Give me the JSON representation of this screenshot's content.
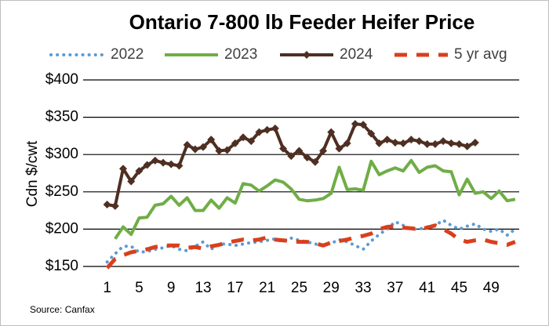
{
  "chart_data": {
    "type": "line",
    "title": "Ontario 7-800 lb Feeder Heifer Price",
    "y_label": "Cdn $/cwt",
    "source": "Source:  Canfax",
    "x": [
      1,
      2,
      3,
      4,
      5,
      6,
      7,
      8,
      9,
      10,
      11,
      12,
      13,
      14,
      15,
      16,
      17,
      18,
      19,
      20,
      21,
      22,
      23,
      24,
      25,
      26,
      27,
      28,
      29,
      30,
      31,
      32,
      33,
      34,
      35,
      36,
      37,
      38,
      39,
      40,
      41,
      42,
      43,
      44,
      45,
      46,
      47,
      48,
      49,
      50,
      51,
      52
    ],
    "xlim": [
      -2,
      52.5
    ],
    "xticks": [
      1,
      5,
      9,
      13,
      17,
      21,
      25,
      29,
      33,
      37,
      41,
      45,
      49
    ],
    "ylim": [
      150,
      400
    ],
    "yticks": [
      {
        "value": 150,
        "label": "$150"
      },
      {
        "value": 200,
        "label": "$200"
      },
      {
        "value": 250,
        "label": "$250"
      },
      {
        "value": 300,
        "label": "$300"
      },
      {
        "value": 350,
        "label": "$350"
      },
      {
        "value": 400,
        "label": "$400"
      }
    ],
    "grid": true,
    "legend": "top",
    "series": [
      {
        "name": "2022",
        "color": "#5b9bd5",
        "style": "dotted",
        "values": [
          156,
          167,
          177,
          177,
          169,
          170,
          173,
          175,
          178,
          173,
          171,
          177,
          183,
          173,
          180,
          180,
          178,
          180,
          182,
          183,
          185,
          187,
          183,
          188,
          185,
          183,
          180,
          178,
          181,
          186,
          183,
          178,
          173,
          184,
          193,
          200,
          210,
          205,
          200,
          200,
          203,
          205,
          212,
          205,
          200,
          204,
          207,
          200,
          197,
          200,
          192,
          200
        ]
      },
      {
        "name": "2023",
        "color": "#70ad47",
        "style": "solid",
        "values": [
          null,
          187,
          203,
          193,
          215,
          216,
          232,
          234,
          244,
          232,
          242,
          225,
          225,
          239,
          228,
          242,
          235,
          261,
          259,
          251,
          258,
          266,
          263,
          254,
          240,
          238,
          239,
          241,
          248,
          283,
          253,
          254,
          252,
          291,
          273,
          278,
          282,
          278,
          292,
          276,
          283,
          285,
          278,
          277,
          246,
          267,
          248,
          250,
          241,
          251,
          238,
          240
        ]
      },
      {
        "name": "2024",
        "color": "#4e2f22",
        "style": "marker",
        "values": [
          233,
          231,
          281,
          264,
          278,
          286,
          292,
          289,
          287,
          285,
          313,
          307,
          310,
          320,
          305,
          306,
          315,
          323,
          318,
          330,
          333,
          335,
          308,
          298,
          305,
          296,
          290,
          305,
          330,
          308,
          315,
          341,
          340,
          328,
          315,
          320,
          316,
          315,
          320,
          318,
          314,
          314,
          318,
          315,
          314,
          311,
          316,
          null,
          null,
          null,
          null,
          null
        ]
      },
      {
        "name": "5 yr avg",
        "color": "#d8401c",
        "style": "dashed",
        "values": [
          148,
          160,
          165,
          169,
          171,
          173,
          176,
          178,
          178,
          178,
          175,
          176,
          174,
          177,
          179,
          182,
          184,
          186,
          185,
          186,
          189,
          186,
          185,
          184,
          183,
          183,
          181,
          178,
          182,
          184,
          186,
          189,
          191,
          194,
          200,
          203,
          204,
          202,
          201,
          200,
          202,
          205,
          200,
          194,
          186,
          183,
          185,
          186,
          183,
          181,
          179,
          183
        ]
      }
    ]
  }
}
